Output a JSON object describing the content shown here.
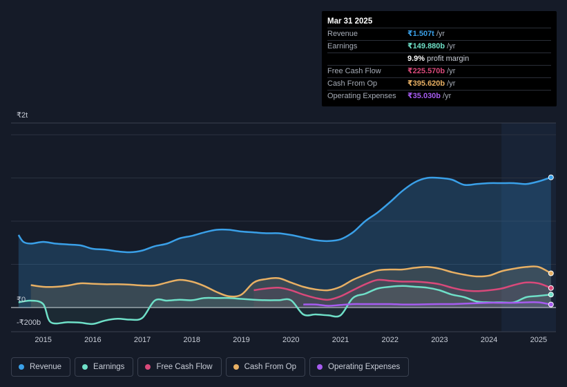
{
  "tooltip": {
    "date": "Mar 31 2025",
    "rows": [
      {
        "label": "Revenue",
        "value": "₹1.507t",
        "unit": "/yr",
        "color": "#3aa0e8"
      },
      {
        "label": "Earnings",
        "value": "₹149.880b",
        "unit": "/yr",
        "color": "#6fe0c8"
      },
      {
        "label": "",
        "value": "9.9%",
        "unit": "profit margin",
        "color": "#ffffff"
      },
      {
        "label": "Free Cash Flow",
        "value": "₹225.570b",
        "unit": "/yr",
        "color": "#d9497a"
      },
      {
        "label": "Cash From Op",
        "value": "₹395.620b",
        "unit": "/yr",
        "color": "#e8b064"
      },
      {
        "label": "Operating Expenses",
        "value": "₹35.030b",
        "unit": "/yr",
        "color": "#a65cf0"
      }
    ]
  },
  "legend": [
    {
      "label": "Revenue",
      "color": "#3aa0e8"
    },
    {
      "label": "Earnings",
      "color": "#6fe0c8"
    },
    {
      "label": "Free Cash Flow",
      "color": "#d9497a"
    },
    {
      "label": "Cash From Op",
      "color": "#e8b064"
    },
    {
      "label": "Operating Expenses",
      "color": "#a65cf0"
    }
  ],
  "chart_data": {
    "type": "line",
    "y_unit": "₹ billions",
    "ylim": [
      -200,
      2000
    ],
    "ytick_labels": [
      {
        "value": 2000,
        "label": "₹2t"
      },
      {
        "value": 0,
        "label": "₹0"
      },
      {
        "value": -200,
        "label": "-₹200b"
      }
    ],
    "xlim": [
      2014.35,
      2025.35
    ],
    "xtick_labels": [
      "2015",
      "2016",
      "2017",
      "2018",
      "2019",
      "2020",
      "2021",
      "2022",
      "2023",
      "2024",
      "2025"
    ],
    "forecast_shade_from": 2024.25,
    "series": [
      {
        "name": "Revenue",
        "color": "#3aa0e8",
        "fill": true,
        "points": [
          [
            2014.5,
            840
          ],
          [
            2014.6,
            760
          ],
          [
            2014.75,
            740
          ],
          [
            2015.0,
            760
          ],
          [
            2015.25,
            740
          ],
          [
            2015.5,
            730
          ],
          [
            2015.75,
            720
          ],
          [
            2016.0,
            680
          ],
          [
            2016.25,
            670
          ],
          [
            2016.5,
            650
          ],
          [
            2016.75,
            640
          ],
          [
            2017.0,
            660
          ],
          [
            2017.25,
            710
          ],
          [
            2017.5,
            740
          ],
          [
            2017.75,
            800
          ],
          [
            2018.0,
            830
          ],
          [
            2018.25,
            870
          ],
          [
            2018.5,
            900
          ],
          [
            2018.75,
            900
          ],
          [
            2019.0,
            880
          ],
          [
            2019.25,
            870
          ],
          [
            2019.5,
            860
          ],
          [
            2019.75,
            860
          ],
          [
            2020.0,
            840
          ],
          [
            2020.25,
            810
          ],
          [
            2020.5,
            780
          ],
          [
            2020.75,
            770
          ],
          [
            2021.0,
            790
          ],
          [
            2021.25,
            870
          ],
          [
            2021.5,
            1000
          ],
          [
            2021.75,
            1100
          ],
          [
            2022.0,
            1220
          ],
          [
            2022.25,
            1350
          ],
          [
            2022.5,
            1450
          ],
          [
            2022.75,
            1500
          ],
          [
            2023.0,
            1500
          ],
          [
            2023.25,
            1480
          ],
          [
            2023.5,
            1420
          ],
          [
            2023.75,
            1430
          ],
          [
            2024.0,
            1440
          ],
          [
            2024.25,
            1440
          ],
          [
            2024.5,
            1440
          ],
          [
            2024.75,
            1430
          ],
          [
            2025.0,
            1460
          ],
          [
            2025.25,
            1507
          ]
        ]
      },
      {
        "name": "Earnings",
        "color": "#6fe0c8",
        "fill": false,
        "points": [
          [
            2014.5,
            60
          ],
          [
            2014.75,
            80
          ],
          [
            2015.0,
            40
          ],
          [
            2015.15,
            -170
          ],
          [
            2015.5,
            -170
          ],
          [
            2015.75,
            -175
          ],
          [
            2016.0,
            -190
          ],
          [
            2016.25,
            -150
          ],
          [
            2016.5,
            -130
          ],
          [
            2016.75,
            -140
          ],
          [
            2017.0,
            -120
          ],
          [
            2017.25,
            80
          ],
          [
            2017.5,
            80
          ],
          [
            2017.75,
            90
          ],
          [
            2018.0,
            85
          ],
          [
            2018.25,
            110
          ],
          [
            2018.5,
            110
          ],
          [
            2018.75,
            110
          ],
          [
            2019.0,
            100
          ],
          [
            2019.25,
            90
          ],
          [
            2019.5,
            85
          ],
          [
            2019.75,
            85
          ],
          [
            2020.0,
            85
          ],
          [
            2020.25,
            -80
          ],
          [
            2020.5,
            -80
          ],
          [
            2020.75,
            -90
          ],
          [
            2021.0,
            -90
          ],
          [
            2021.25,
            110
          ],
          [
            2021.5,
            160
          ],
          [
            2021.75,
            220
          ],
          [
            2022.0,
            240
          ],
          [
            2022.25,
            250
          ],
          [
            2022.5,
            240
          ],
          [
            2022.75,
            230
          ],
          [
            2023.0,
            200
          ],
          [
            2023.25,
            150
          ],
          [
            2023.5,
            120
          ],
          [
            2023.75,
            70
          ],
          [
            2024.0,
            60
          ],
          [
            2024.25,
            60
          ],
          [
            2024.5,
            60
          ],
          [
            2024.75,
            120
          ],
          [
            2025.0,
            135
          ],
          [
            2025.25,
            150
          ]
        ]
      },
      {
        "name": "Free Cash Flow",
        "color": "#d9497a",
        "fill": false,
        "points": [
          [
            2019.25,
            200
          ],
          [
            2019.5,
            220
          ],
          [
            2019.75,
            230
          ],
          [
            2020.0,
            200
          ],
          [
            2020.25,
            150
          ],
          [
            2020.5,
            110
          ],
          [
            2020.75,
            90
          ],
          [
            2021.0,
            130
          ],
          [
            2021.25,
            200
          ],
          [
            2021.5,
            270
          ],
          [
            2021.75,
            320
          ],
          [
            2022.0,
            310
          ],
          [
            2022.25,
            300
          ],
          [
            2022.5,
            300
          ],
          [
            2022.75,
            290
          ],
          [
            2023.0,
            270
          ],
          [
            2023.25,
            230
          ],
          [
            2023.5,
            200
          ],
          [
            2023.75,
            190
          ],
          [
            2024.0,
            200
          ],
          [
            2024.25,
            220
          ],
          [
            2024.5,
            260
          ],
          [
            2024.75,
            290
          ],
          [
            2025.0,
            280
          ],
          [
            2025.25,
            226
          ]
        ]
      },
      {
        "name": "Cash From Op",
        "color": "#e8b064",
        "fill": true,
        "points": [
          [
            2014.75,
            260
          ],
          [
            2015.0,
            240
          ],
          [
            2015.25,
            240
          ],
          [
            2015.5,
            255
          ],
          [
            2015.75,
            280
          ],
          [
            2016.0,
            275
          ],
          [
            2016.25,
            270
          ],
          [
            2016.5,
            270
          ],
          [
            2016.75,
            265
          ],
          [
            2017.0,
            255
          ],
          [
            2017.25,
            255
          ],
          [
            2017.5,
            290
          ],
          [
            2017.75,
            320
          ],
          [
            2018.0,
            300
          ],
          [
            2018.25,
            250
          ],
          [
            2018.5,
            180
          ],
          [
            2018.75,
            130
          ],
          [
            2019.0,
            150
          ],
          [
            2019.25,
            290
          ],
          [
            2019.5,
            330
          ],
          [
            2019.75,
            340
          ],
          [
            2020.0,
            290
          ],
          [
            2020.25,
            240
          ],
          [
            2020.5,
            210
          ],
          [
            2020.75,
            200
          ],
          [
            2021.0,
            240
          ],
          [
            2021.25,
            320
          ],
          [
            2021.5,
            380
          ],
          [
            2021.75,
            430
          ],
          [
            2022.0,
            440
          ],
          [
            2022.25,
            440
          ],
          [
            2022.5,
            460
          ],
          [
            2022.75,
            470
          ],
          [
            2023.0,
            450
          ],
          [
            2023.25,
            410
          ],
          [
            2023.5,
            380
          ],
          [
            2023.75,
            360
          ],
          [
            2024.0,
            370
          ],
          [
            2024.25,
            420
          ],
          [
            2024.5,
            450
          ],
          [
            2024.75,
            470
          ],
          [
            2025.0,
            470
          ],
          [
            2025.25,
            396
          ]
        ]
      },
      {
        "name": "Operating Expenses",
        "color": "#a65cf0",
        "fill": false,
        "points": [
          [
            2020.25,
            35
          ],
          [
            2020.5,
            35
          ],
          [
            2020.75,
            20
          ],
          [
            2021.0,
            30
          ],
          [
            2021.25,
            40
          ],
          [
            2021.5,
            40
          ],
          [
            2021.75,
            40
          ],
          [
            2022.0,
            40
          ],
          [
            2022.25,
            35
          ],
          [
            2022.5,
            35
          ],
          [
            2022.75,
            38
          ],
          [
            2023.0,
            40
          ],
          [
            2023.25,
            40
          ],
          [
            2023.5,
            45
          ],
          [
            2023.75,
            50
          ],
          [
            2024.0,
            55
          ],
          [
            2024.25,
            55
          ],
          [
            2024.5,
            55
          ],
          [
            2024.75,
            60
          ],
          [
            2025.0,
            60
          ],
          [
            2025.25,
            35
          ]
        ]
      }
    ]
  }
}
